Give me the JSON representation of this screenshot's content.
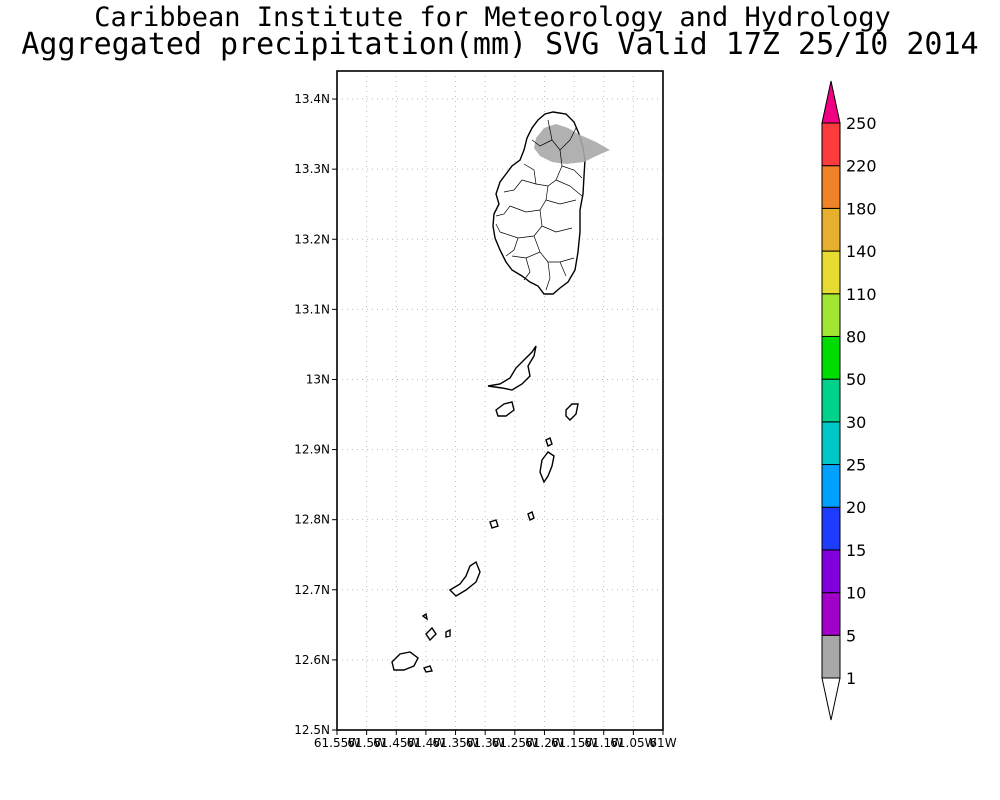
{
  "header": {
    "institution": "Caribbean Institute for Meteorology and Hydrology",
    "product_title": "Aggregated precipitation(mm) SVG Valid 17Z 25/10 2014"
  },
  "map": {
    "lat_range": [
      12.5,
      13.44
    ],
    "lon_range": [
      -61.55,
      -61.0
    ],
    "grid": true,
    "lat_ticks": [
      "12.5N",
      "12.6N",
      "12.7N",
      "12.8N",
      "12.9N",
      "13N",
      "13.1N",
      "13.2N",
      "13.3N",
      "13.4N"
    ],
    "lon_ticks": [
      "61.55W",
      "61.5W",
      "61.45W",
      "61.4W",
      "61.35W",
      "61.3W",
      "61.25W",
      "61.2W",
      "61.15W",
      "61.1W",
      "61.05W",
      "61W"
    ],
    "land_color": "#ffffff",
    "coast_color": "#000000"
  },
  "colorbar": {
    "levels": [
      "1",
      "5",
      "10",
      "15",
      "20",
      "25",
      "30",
      "50",
      "80",
      "110",
      "140",
      "180",
      "220",
      "250"
    ],
    "colors": [
      "#a8a8a8",
      "#a000c8",
      "#8200dc",
      "#1e3cff",
      "#00a0ff",
      "#00c8c8",
      "#00d28c",
      "#00dc00",
      "#a0e632",
      "#e6dc32",
      "#e6af2d",
      "#f08228",
      "#fa3c3c",
      "#f00082"
    ]
  }
}
